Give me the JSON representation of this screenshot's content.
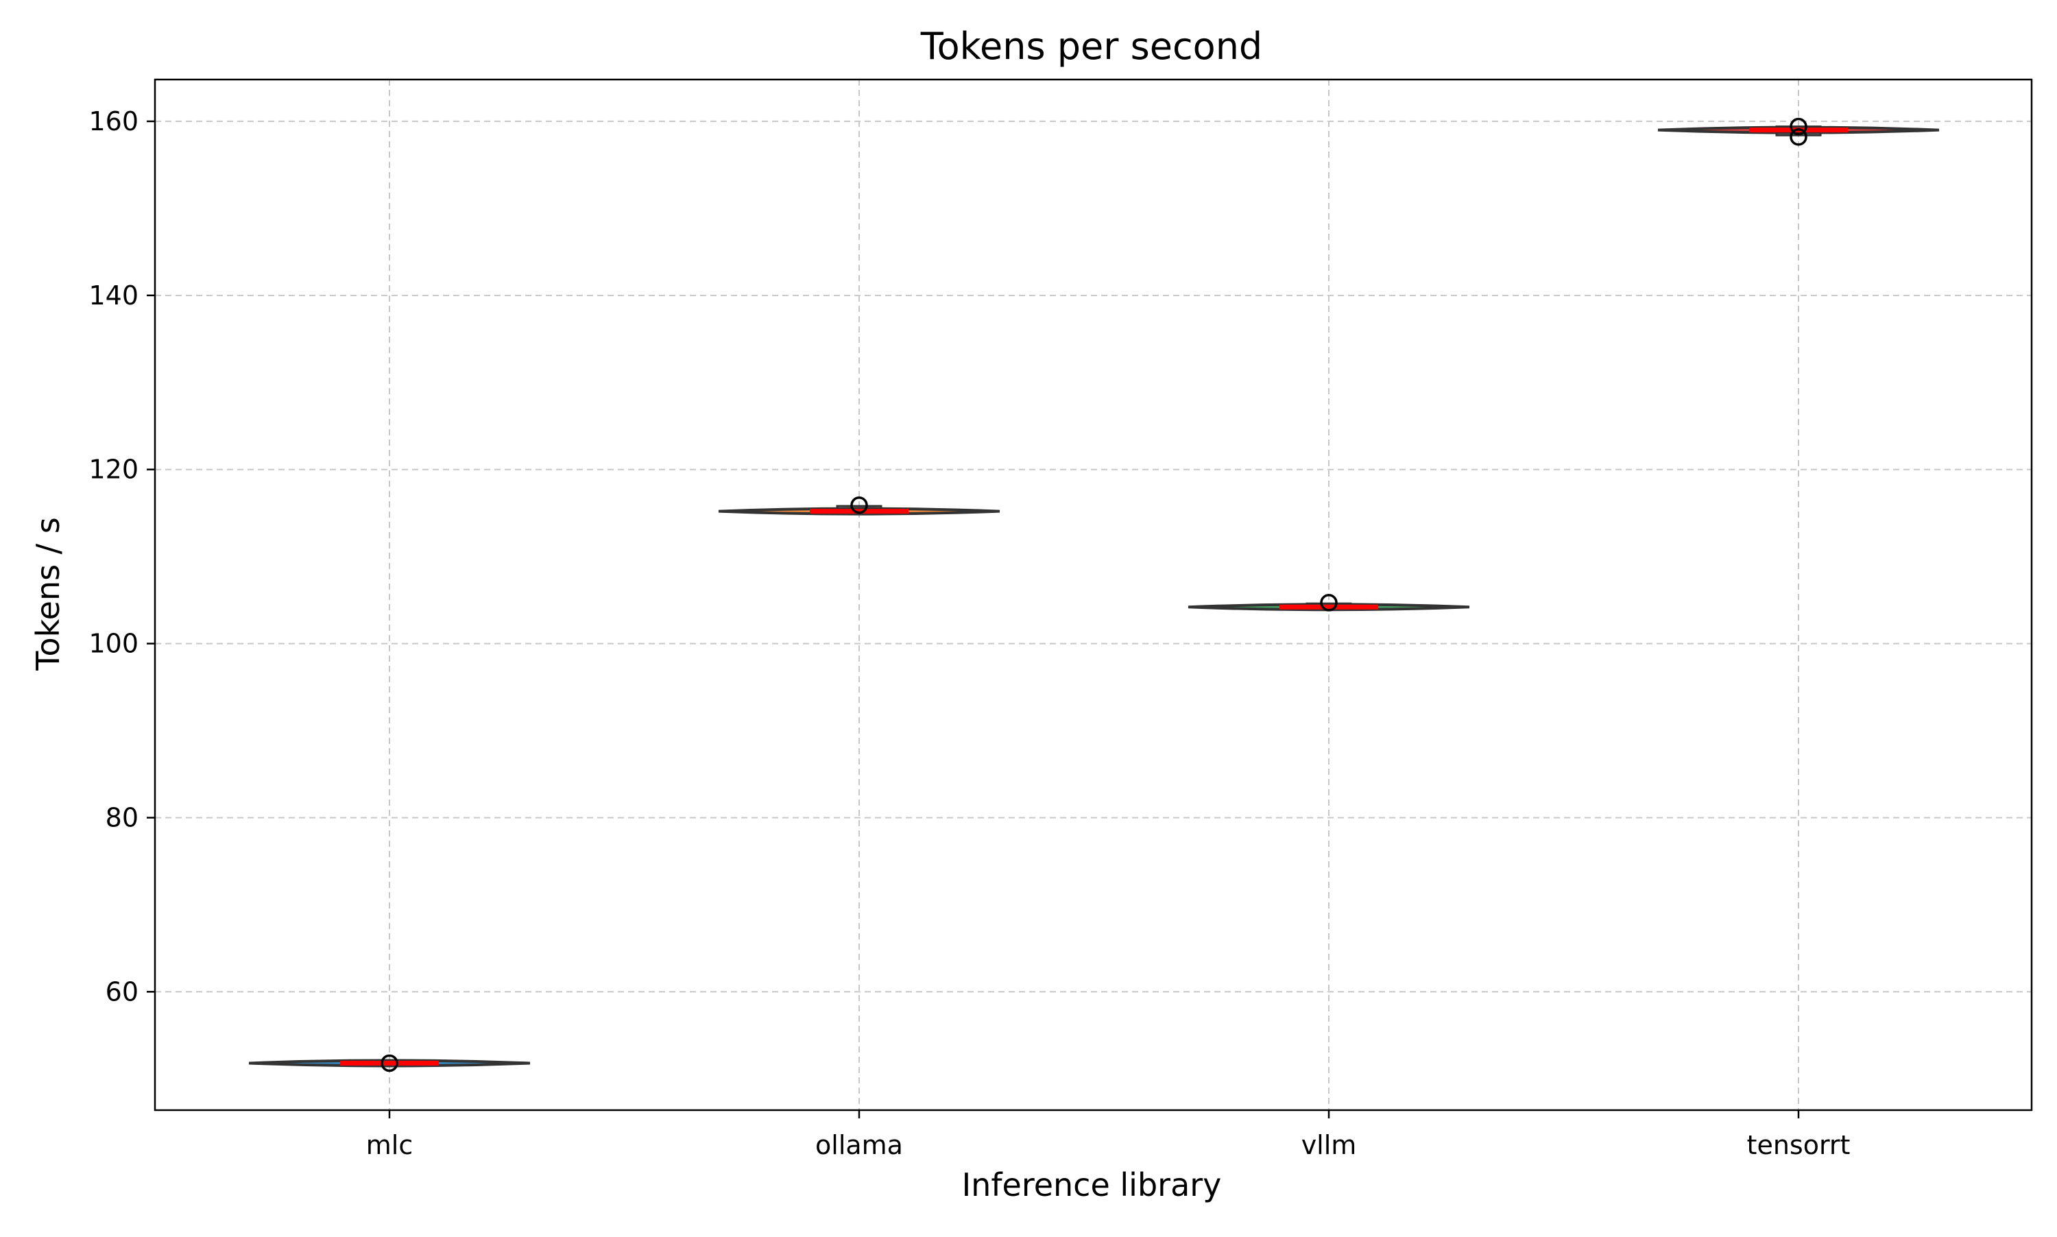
{
  "chart_data": {
    "type": "violin",
    "title": "Tokens per second",
    "xlabel": "Inference library",
    "ylabel": "Tokens / s",
    "categories": [
      "mlc",
      "ollama",
      "vllm",
      "tensorrt"
    ],
    "ylim": [
      46.4,
      164.8
    ],
    "yticks": [
      60,
      80,
      100,
      120,
      140,
      160
    ],
    "grid": true,
    "series": [
      {
        "category": "mlc",
        "color": "#1f77b4",
        "median": 51.8,
        "q1": 51.7,
        "q3": 51.9,
        "whisker_low": 51.6,
        "whisker_high": 52.0,
        "min": 51.6,
        "max": 52.0,
        "outliers": [
          51.8
        ]
      },
      {
        "category": "ollama",
        "color": "#e07b2a",
        "median": 115.2,
        "q1": 114.9,
        "q3": 115.8,
        "whisker_low": 114.9,
        "whisker_high": 115.8,
        "min": 114.9,
        "max": 115.8,
        "outliers": [
          115.9
        ]
      },
      {
        "category": "vllm",
        "color": "#2f8f4e",
        "median": 104.2,
        "q1": 103.9,
        "q3": 104.6,
        "whisker_low": 103.9,
        "whisker_high": 104.7,
        "min": 103.9,
        "max": 104.7,
        "outliers": [
          104.7
        ]
      },
      {
        "category": "tensorrt",
        "color": "#d62728",
        "median": 159.0,
        "q1": 158.4,
        "q3": 159.4,
        "whisker_low": 158.4,
        "whisker_high": 159.5,
        "min": 158.4,
        "max": 159.5,
        "outliers": [
          159.4,
          158.2
        ]
      }
    ],
    "median_color": "#ff0000",
    "grid_color": "#c8c8c8"
  }
}
